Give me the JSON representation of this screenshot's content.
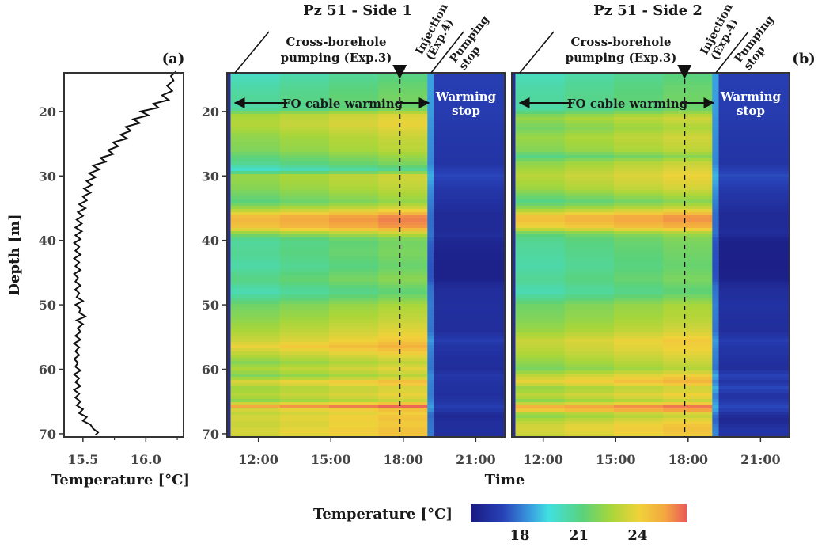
{
  "chart_data": [
    {
      "panel_label": "(a)",
      "type": "line",
      "xlabel": "Temperature [°C]",
      "ylabel": "Depth [m]",
      "xlim": [
        15.35,
        16.3
      ],
      "ylim": [
        70.5,
        14
      ],
      "y_inverted": true,
      "xticks": [
        "15.5",
        "16.0"
      ],
      "xtick_values": [
        15.5,
        16.0
      ],
      "xminor_values": [
        15.75,
        16.25
      ],
      "yticks": [
        "20",
        "30",
        "40",
        "50",
        "60",
        "70"
      ],
      "ytick_values": [
        20,
        30,
        40,
        50,
        60,
        70
      ],
      "series": [
        {
          "depth": [
            13.8,
            14.5,
            15.2,
            16.0,
            16.8,
            17.5,
            18.2,
            18.8,
            19.4,
            20.0,
            20.6,
            21.2,
            21.8,
            22.4,
            23.0,
            23.6,
            24.2,
            24.8,
            25.4,
            26.0,
            26.6,
            27.2,
            27.8,
            28.4,
            29.0,
            29.6,
            30.2,
            30.8,
            31.4,
            32.0,
            32.6,
            33.2,
            33.8,
            34.4,
            35.0,
            35.6,
            36.2,
            36.8,
            37.4,
            38.0,
            38.6,
            39.2,
            39.8,
            40.4,
            41.0,
            41.6,
            42.2,
            42.8,
            43.4,
            44.0,
            44.6,
            45.2,
            45.8,
            46.4,
            47.0,
            47.6,
            48.2,
            48.8,
            49.4,
            50.0,
            50.6,
            51.2,
            51.8,
            52.4,
            53.0,
            53.6,
            54.2,
            54.8,
            55.4,
            56.0,
            56.6,
            57.2,
            57.8,
            58.4,
            59.0,
            59.6,
            60.2,
            60.8,
            61.4,
            62.0,
            62.6,
            63.2,
            63.8,
            64.4,
            65.0,
            65.6,
            66.2,
            66.8,
            67.4,
            68.0,
            68.6,
            69.2,
            69.8,
            70.2
          ],
          "temperature": [
            16.24,
            16.2,
            16.22,
            16.17,
            16.21,
            16.13,
            16.18,
            16.06,
            16.1,
            15.96,
            16.02,
            15.9,
            15.95,
            15.84,
            15.88,
            15.8,
            15.85,
            15.74,
            15.78,
            15.7,
            15.74,
            15.64,
            15.68,
            15.58,
            15.63,
            15.55,
            15.6,
            15.53,
            15.57,
            15.51,
            15.56,
            15.5,
            15.53,
            15.47,
            15.52,
            15.46,
            15.5,
            15.45,
            15.49,
            15.44,
            15.49,
            15.44,
            15.48,
            15.43,
            15.47,
            15.44,
            15.48,
            15.43,
            15.47,
            15.44,
            15.48,
            15.43,
            15.46,
            15.44,
            15.48,
            15.44,
            15.47,
            15.45,
            15.5,
            15.44,
            15.48,
            15.47,
            15.52,
            15.45,
            15.5,
            15.46,
            15.48,
            15.44,
            15.48,
            15.43,
            15.47,
            15.44,
            15.47,
            15.43,
            15.46,
            15.44,
            15.48,
            15.43,
            15.47,
            15.44,
            15.48,
            15.43,
            15.47,
            15.44,
            15.48,
            15.45,
            15.5,
            15.47,
            15.53,
            15.5,
            15.56,
            15.58,
            15.62,
            15.6
          ]
        }
      ]
    },
    {
      "panel_label": "",
      "type": "heatmap",
      "title": "Pz 51 - Side 1",
      "xlabel": "",
      "ylabel": "",
      "x_unit": "time of day",
      "xlim_hours": [
        10.7,
        22.2
      ],
      "xticks": [
        "12:00",
        "15:00",
        "18:00",
        "21:00"
      ],
      "xtick_hours": [
        12,
        15,
        18,
        21
      ],
      "ylim": [
        70.5,
        14
      ],
      "yticks": [
        "20",
        "30",
        "40",
        "50",
        "60",
        "70"
      ],
      "ytick_values": [
        20,
        30,
        40,
        50,
        60,
        70
      ],
      "heating_interval_hours": [
        10.85,
        19.0
      ],
      "injection_time_hours": 17.85,
      "annotations": {
        "pumping": "Cross-borehole\npumping (Exp.3)",
        "injection": "Injection\n(Exp.4)",
        "pumping_stop": "Pumping\nstop",
        "cable_warming": "FO cable warming",
        "warming_stop": "Warming\nstop"
      },
      "heating_profile": {
        "depth": [
          14,
          16,
          18,
          19.5,
          20.5,
          22,
          24,
          26,
          28,
          29,
          30,
          32,
          34,
          35.5,
          36.5,
          38,
          39,
          40,
          42,
          44,
          46,
          48,
          50,
          52,
          54,
          55.5,
          56.5,
          58,
          59,
          60,
          61,
          62,
          63,
          64,
          65,
          65.8,
          66.5,
          67.5,
          68.5,
          69.5,
          70.5
        ],
        "temperature": [
          20.5,
          21.0,
          21.3,
          21.0,
          23.2,
          23.5,
          22.8,
          22.5,
          21.4,
          20.4,
          23.0,
          22.6,
          21.8,
          23.8,
          25.6,
          25.1,
          22.6,
          21.2,
          21.4,
          21.0,
          21.7,
          20.8,
          22.2,
          22.7,
          23.3,
          23.9,
          24.6,
          23.3,
          22.6,
          23.4,
          22.4,
          24.4,
          23.0,
          23.6,
          22.6,
          26.0,
          23.5,
          24.2,
          23.8,
          24.2,
          24.0
        ]
      },
      "cooling_profile": {
        "depth": [
          14,
          20,
          24,
          28,
          30,
          32,
          36,
          38,
          39.5,
          40,
          44,
          46,
          47,
          48,
          50,
          54,
          55.5,
          56.5,
          58,
          60,
          61,
          62,
          64,
          65,
          66,
          67,
          68,
          70.5
        ],
        "temperature": [
          17.0,
          16.9,
          16.7,
          16.6,
          17.2,
          16.7,
          16.2,
          16.2,
          16.3,
          16.0,
          15.8,
          15.8,
          16.2,
          16.3,
          16.4,
          16.3,
          16.9,
          16.6,
          16.4,
          16.3,
          16.7,
          16.5,
          16.4,
          16.6,
          17.0,
          16.1,
          16.3,
          16.4
        ]
      }
    },
    {
      "panel_label": "(b)",
      "type": "heatmap",
      "title": "Pz 51 - Side 2",
      "xlabel": "",
      "ylabel": "",
      "x_unit": "time of day",
      "xlim_hours": [
        10.7,
        22.2
      ],
      "xticks": [
        "12:00",
        "15:00",
        "18:00",
        "21:00"
      ],
      "xtick_hours": [
        12,
        15,
        18,
        21
      ],
      "ylim": [
        70.5,
        14
      ],
      "yticks": [
        "20",
        "30",
        "40",
        "50",
        "60",
        "70"
      ],
      "ytick_values": [
        20,
        30,
        40,
        50,
        60,
        70
      ],
      "heating_interval_hours": [
        10.85,
        19.0
      ],
      "injection_time_hours": 17.85,
      "annotations": {
        "pumping": "Cross-borehole\npumping (Exp.3)",
        "injection": "Injection\n(Exp.4)",
        "pumping_stop": "Pumping\nstop",
        "cable_warming": "FO cable warming",
        "warming_stop": "Warming\nstop"
      },
      "heating_profile": {
        "depth": [
          14,
          16,
          18,
          19.5,
          21,
          22.5,
          24,
          26,
          27,
          28,
          30,
          32,
          34,
          35.5,
          36.5,
          38,
          39,
          40,
          42,
          44,
          46,
          48,
          50,
          52,
          54,
          55.5,
          57,
          58.5,
          60,
          61,
          62,
          63,
          64,
          65,
          66,
          67,
          68,
          69,
          70.5
        ],
        "temperature": [
          20.6,
          21.0,
          21.2,
          21.0,
          23.0,
          22.3,
          23.0,
          22.6,
          21.6,
          22.8,
          23.6,
          23.0,
          21.6,
          23.6,
          25.4,
          24.5,
          22.0,
          21.4,
          21.2,
          21.0,
          21.4,
          20.8,
          22.2,
          22.5,
          23.0,
          23.9,
          23.6,
          23.0,
          22.4,
          23.8,
          24.6,
          22.8,
          23.8,
          22.6,
          26.2,
          22.5,
          23.5,
          24.2,
          23.8
        ]
      },
      "cooling_profile": {
        "depth": [
          14,
          20,
          24,
          28,
          30,
          32,
          36,
          38,
          39,
          40,
          44,
          46,
          47,
          48,
          50,
          54,
          55.5,
          57,
          59,
          60,
          61,
          62,
          63,
          64,
          65,
          66,
          67,
          68,
          69,
          70.5
        ],
        "temperature": [
          17.0,
          16.9,
          16.7,
          16.6,
          17.3,
          16.8,
          16.2,
          16.2,
          16.3,
          15.8,
          15.7,
          15.8,
          16.2,
          16.3,
          16.5,
          16.3,
          16.9,
          16.6,
          16.4,
          16.3,
          17.2,
          16.5,
          17.3,
          16.4,
          16.8,
          17.3,
          16.3,
          16.0,
          16.5,
          16.6
        ]
      }
    }
  ],
  "colorbar": {
    "label": "Temperature [°C]",
    "range": [
      15.5,
      26.5
    ],
    "ticks": [
      "18",
      "21",
      "24"
    ],
    "tick_values": [
      18,
      21,
      24
    ]
  },
  "colors": {
    "line": "#111111",
    "frame": "#333333",
    "left_strip": "#2a2f8a"
  },
  "colormap": [
    "#1a1a80",
    "#2842b8",
    "#3aa0e0",
    "#40e0e0",
    "#5ad27a",
    "#a8d63a",
    "#f0d23a",
    "#f4a640",
    "#ea5a5a"
  ]
}
